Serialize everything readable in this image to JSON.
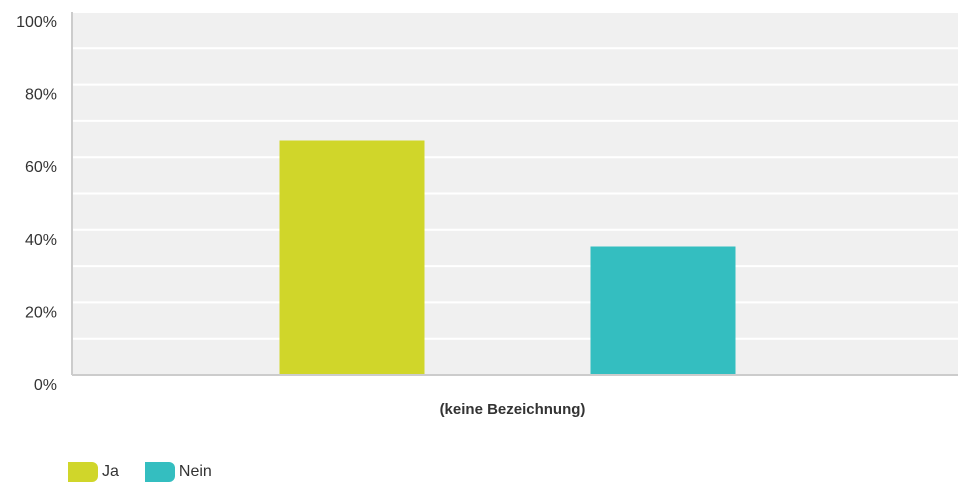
{
  "chart_data": {
    "type": "bar",
    "categories": [
      "(keine Bezeichnung)"
    ],
    "series": [
      {
        "name": "Ja",
        "values": [
          64.6
        ],
        "color": "#d0d62a"
      },
      {
        "name": "Nein",
        "values": [
          35.4
        ],
        "color": "#34bec0"
      }
    ],
    "xlabel": "(keine Bezeichnung)",
    "ylabel": "",
    "ylim": [
      0,
      100
    ],
    "yticks": [
      0,
      20,
      40,
      60,
      80,
      100
    ],
    "ytick_labels": [
      "0%",
      "20%",
      "40%",
      "60%",
      "80%",
      "100%"
    ],
    "grid": true,
    "legend_position": "bottom-left",
    "plot_background": "#f0f0f0",
    "gridline_color": "#ffffff"
  },
  "legend": {
    "items": [
      {
        "label": "Ja",
        "color": "#d0d62a"
      },
      {
        "label": "Nein",
        "color": "#34bec0"
      }
    ]
  }
}
